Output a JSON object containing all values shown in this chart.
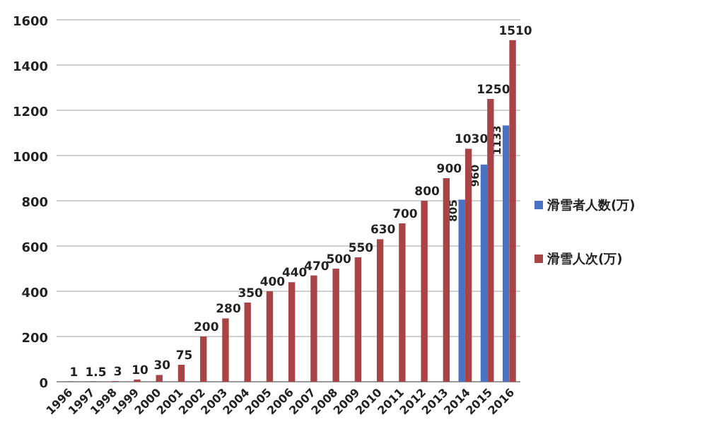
{
  "chart_data": {
    "type": "bar",
    "categories": [
      "1996",
      "1997",
      "1998",
      "1999",
      "2000",
      "2001",
      "2002",
      "2003",
      "2004",
      "2005",
      "2006",
      "2007",
      "2008",
      "2009",
      "2010",
      "2011",
      "2012",
      "2013",
      "2014",
      "2015",
      "2016"
    ],
    "series": [
      {
        "name": "滑雪者人数(万)",
        "color": "#4a72c4",
        "values": [
          null,
          null,
          null,
          null,
          null,
          null,
          null,
          null,
          null,
          null,
          null,
          null,
          null,
          null,
          null,
          null,
          null,
          null,
          805,
          960,
          1133
        ]
      },
      {
        "name": "滑雪人次(万)",
        "color": "#a84446",
        "values": [
          1,
          1.5,
          3,
          10,
          30,
          75,
          200,
          280,
          350,
          400,
          440,
          470,
          500,
          550,
          630,
          700,
          800,
          900,
          1030,
          1250,
          1510
        ]
      }
    ],
    "ylim": [
      0,
      1600
    ],
    "yticks": [
      0,
      200,
      400,
      600,
      800,
      1000,
      1200,
      1400,
      1600
    ],
    "grid": "y",
    "legend": "right",
    "data_labels": true
  }
}
